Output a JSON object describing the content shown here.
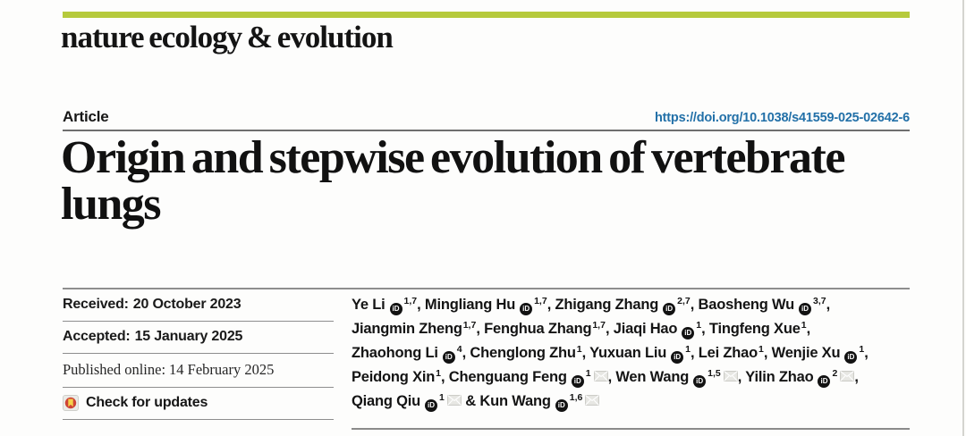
{
  "journal": {
    "logo_text": "nature ecology & evolution"
  },
  "article": {
    "type_label": "Article",
    "doi": "https://doi.org/10.1038/s41559-025-02642-6",
    "title": "Origin and stepwise evolution of vertebrate lungs"
  },
  "dates": [
    {
      "label": "Received:",
      "value": "20 October 2023"
    },
    {
      "label": "Accepted:",
      "value": "15 January 2025"
    },
    {
      "label": "Published online:",
      "value": "14 February 2025"
    }
  ],
  "crossmark": {
    "label": "Check for updates"
  },
  "icons": {
    "orcid_text": "iD",
    "orcid_name": "orcid-icon",
    "mail_name": "email-icon",
    "check_name": "crossmark-check-icon"
  },
  "colors": {
    "accent_green": "#b6ca3c",
    "doi_blue": "#2270a8",
    "text_black": "#161616",
    "rule_gray": "#8e8e8e",
    "crossmark_red": "#ce4436",
    "crossmark_yellow": "#f6d24b",
    "orcid_black": "#121212",
    "envelope_gray": "#e7e7e3"
  },
  "authors": {
    "lines": [
      [
        {
          "name": "Ye Li",
          "orcid": true,
          "sup": "1,7",
          "mail": false,
          "sep": ", "
        },
        {
          "name": "Mingliang Hu",
          "orcid": true,
          "sup": "1,7",
          "mail": false,
          "sep": ", "
        },
        {
          "name": "Zhigang Zhang",
          "orcid": true,
          "sup": "2,7",
          "mail": false,
          "sep": ", "
        },
        {
          "name": "Baosheng Wu",
          "orcid": true,
          "sup": "3,7",
          "mail": false,
          "sep": ","
        }
      ],
      [
        {
          "name": "Jiangmin Zheng",
          "orcid": false,
          "sup": "1,7",
          "mail": false,
          "sep": ", "
        },
        {
          "name": "Fenghua Zhang",
          "orcid": false,
          "sup": "1,7",
          "mail": false,
          "sep": ", "
        },
        {
          "name": "Jiaqi Hao",
          "orcid": true,
          "sup": "1",
          "mail": false,
          "sep": ", "
        },
        {
          "name": "Tingfeng Xue",
          "orcid": false,
          "sup": "1",
          "mail": false,
          "sep": ","
        }
      ],
      [
        {
          "name": "Zhaohong Li",
          "orcid": true,
          "sup": "4",
          "mail": false,
          "sep": ", "
        },
        {
          "name": "Chenglong Zhu",
          "orcid": false,
          "sup": "1",
          "mail": false,
          "sep": ", "
        },
        {
          "name": "Yuxuan Liu",
          "orcid": true,
          "sup": "1",
          "mail": false,
          "sep": ", "
        },
        {
          "name": "Lei Zhao",
          "orcid": false,
          "sup": "1",
          "mail": false,
          "sep": ", "
        },
        {
          "name": "Wenjie Xu",
          "orcid": true,
          "sup": "1",
          "mail": false,
          "sep": ","
        }
      ],
      [
        {
          "name": "Peidong Xin",
          "orcid": false,
          "sup": "1",
          "mail": false,
          "sep": ", "
        },
        {
          "name": "Chenguang Feng",
          "orcid": true,
          "sup": "1",
          "mail": true,
          "sep": ", "
        },
        {
          "name": "Wen Wang",
          "orcid": true,
          "sup": "1,5",
          "mail": true,
          "sep": ", "
        },
        {
          "name": "Yilin Zhao",
          "orcid": true,
          "sup": "2",
          "mail": true,
          "sep": ","
        }
      ],
      [
        {
          "name": "Qiang Qiu",
          "orcid": true,
          "sup": "1",
          "mail": true,
          "sep": " & "
        },
        {
          "name": "Kun Wang",
          "orcid": true,
          "sup": "1,6",
          "mail": true,
          "sep": ""
        }
      ]
    ]
  }
}
